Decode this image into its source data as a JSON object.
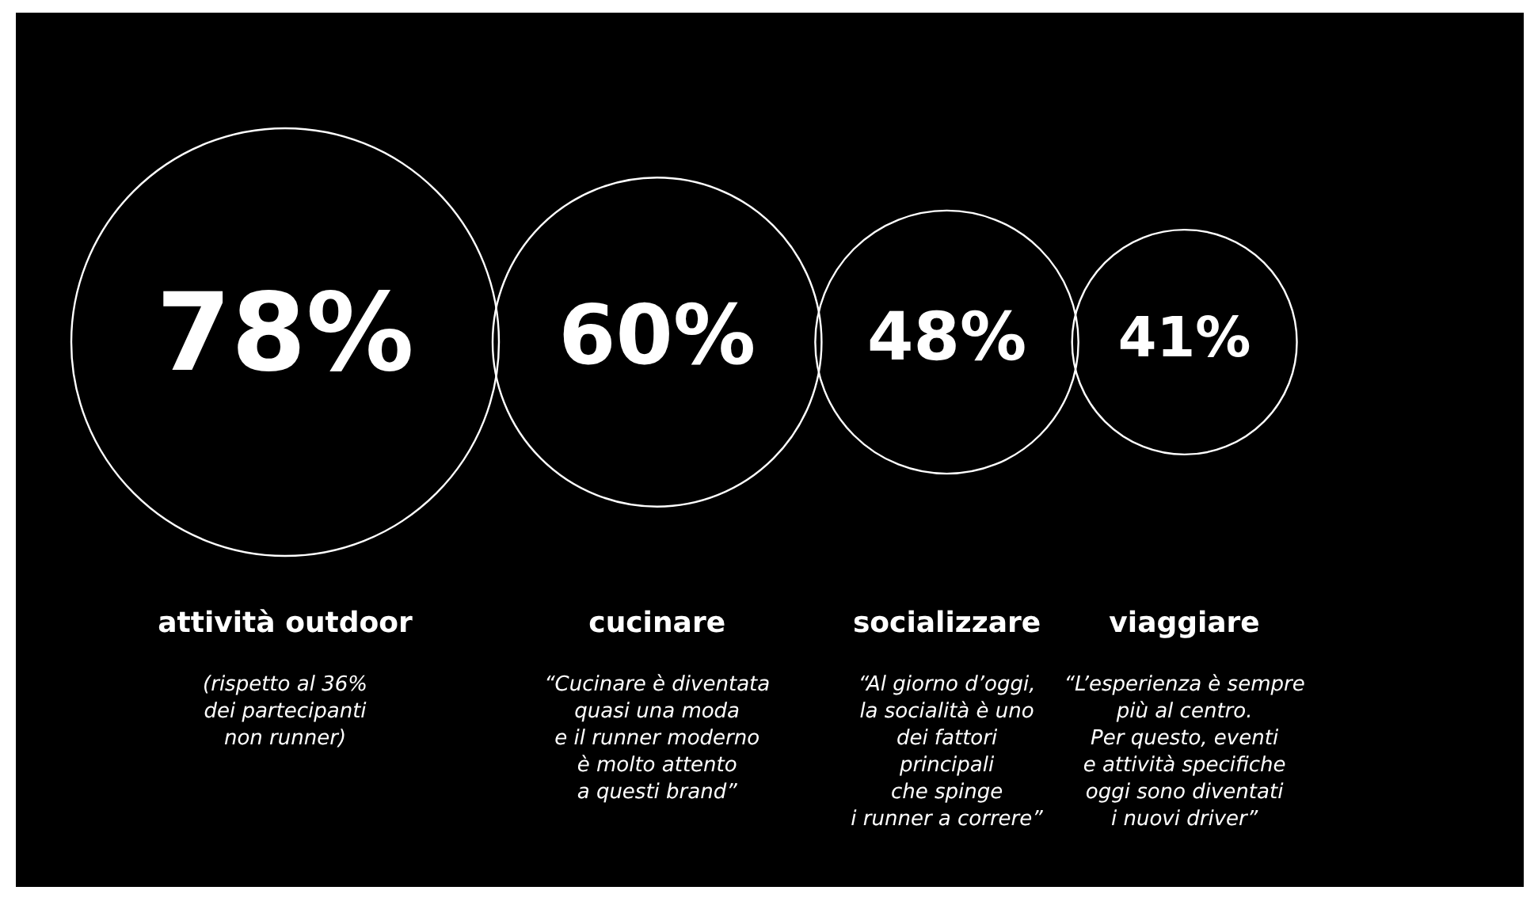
{
  "chart_data": {
    "type": "other",
    "categories": [
      "attività outdoor",
      "cucinare",
      "socializzare",
      "viaggiare"
    ],
    "values": [
      78,
      60,
      48,
      41
    ],
    "value_labels": [
      "78%",
      "60%",
      "48%",
      "41%"
    ],
    "color": "#ffffff",
    "annotations": [
      "(rispetto al 36%\ndei partecipanti\nnon runner)",
      "“Cucinare è diventata\nquasi una moda\ne il runner moderno\nè molto attento\na questi brand”",
      "“Al giorno d’oggi,\nla socialità è uno\ndei fattori\nprincipali\nche spinge\ni runner a correre”",
      "“L’esperienza è sempre\npiù al centro.\nPer questo, eventi\ne attività specifiche\noggi sono diventati\ni nuovi driver”"
    ]
  }
}
